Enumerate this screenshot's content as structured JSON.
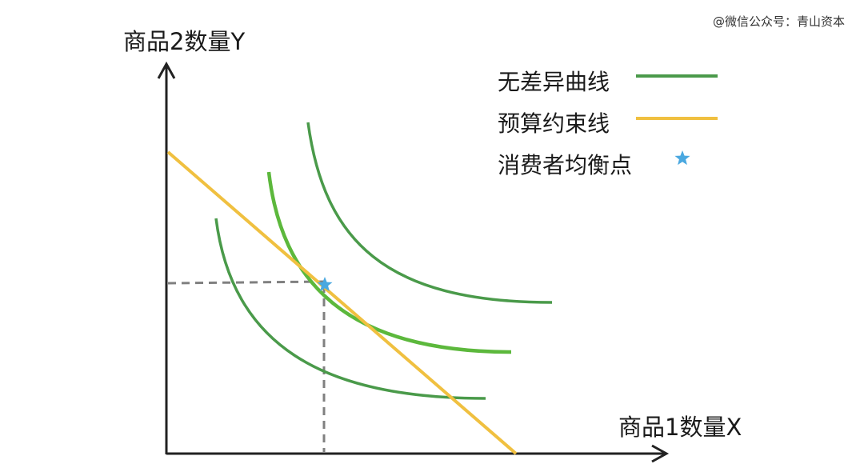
{
  "watermark": "@微信公众号：青山资本",
  "axes": {
    "y_label": "商品2数量Y",
    "x_label": "商品1数量X"
  },
  "legend": {
    "indifference_curve": "无差异曲线",
    "budget_line": "预算约束线",
    "equilibrium": "消费者均衡点"
  },
  "colors": {
    "indifference_curve": "#4a9a4a",
    "indifference_curve_tangent": "#5cb83c",
    "budget_line": "#f0c040",
    "equilibrium_star": "#4aa8e0",
    "axis": "#222222",
    "guide_line": "#808080"
  },
  "markers": {
    "equilibrium_icon": "star-icon"
  }
}
